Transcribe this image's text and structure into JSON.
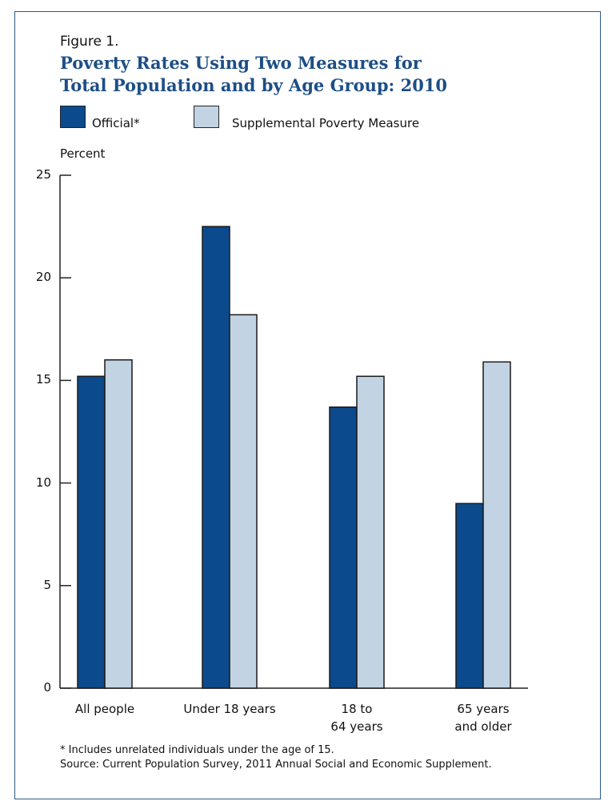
{
  "figure_label": "Figure 1.",
  "chart_data": {
    "type": "bar",
    "title": "Poverty Rates Using Two Measures for Total Population and by Age Group: 2010",
    "title_lines": [
      "Poverty Rates Using Two Measures for",
      "Total Population and by Age Group: 2010"
    ],
    "ylabel": "Percent",
    "xlabel": "",
    "ylim": [
      0,
      25
    ],
    "yticks": [
      "0",
      "5",
      "10",
      "15",
      "20",
      "25"
    ],
    "categories": [
      "All people",
      "Under 18 years",
      "18 to 64 years",
      "65 years and older"
    ],
    "category_lines": [
      [
        "All people"
      ],
      [
        "Under 18 years"
      ],
      [
        "18 to",
        "64 years"
      ],
      [
        "65 years",
        "and older"
      ]
    ],
    "series": [
      {
        "name": "Official*",
        "color": "#0b4a8c",
        "values": [
          15.2,
          22.5,
          13.7,
          9.0
        ]
      },
      {
        "name": "Supplemental Poverty Measure",
        "color": "#c2d3e3",
        "values": [
          16.0,
          18.2,
          15.2,
          15.9
        ]
      }
    ],
    "legend_position": "top-left",
    "grid": false
  },
  "notes": {
    "footnote": "* Includes unrelated individuals under the age of 15.",
    "source": "Source: Current Population Survey, 2011 Annual Social and Economic Supplement."
  }
}
